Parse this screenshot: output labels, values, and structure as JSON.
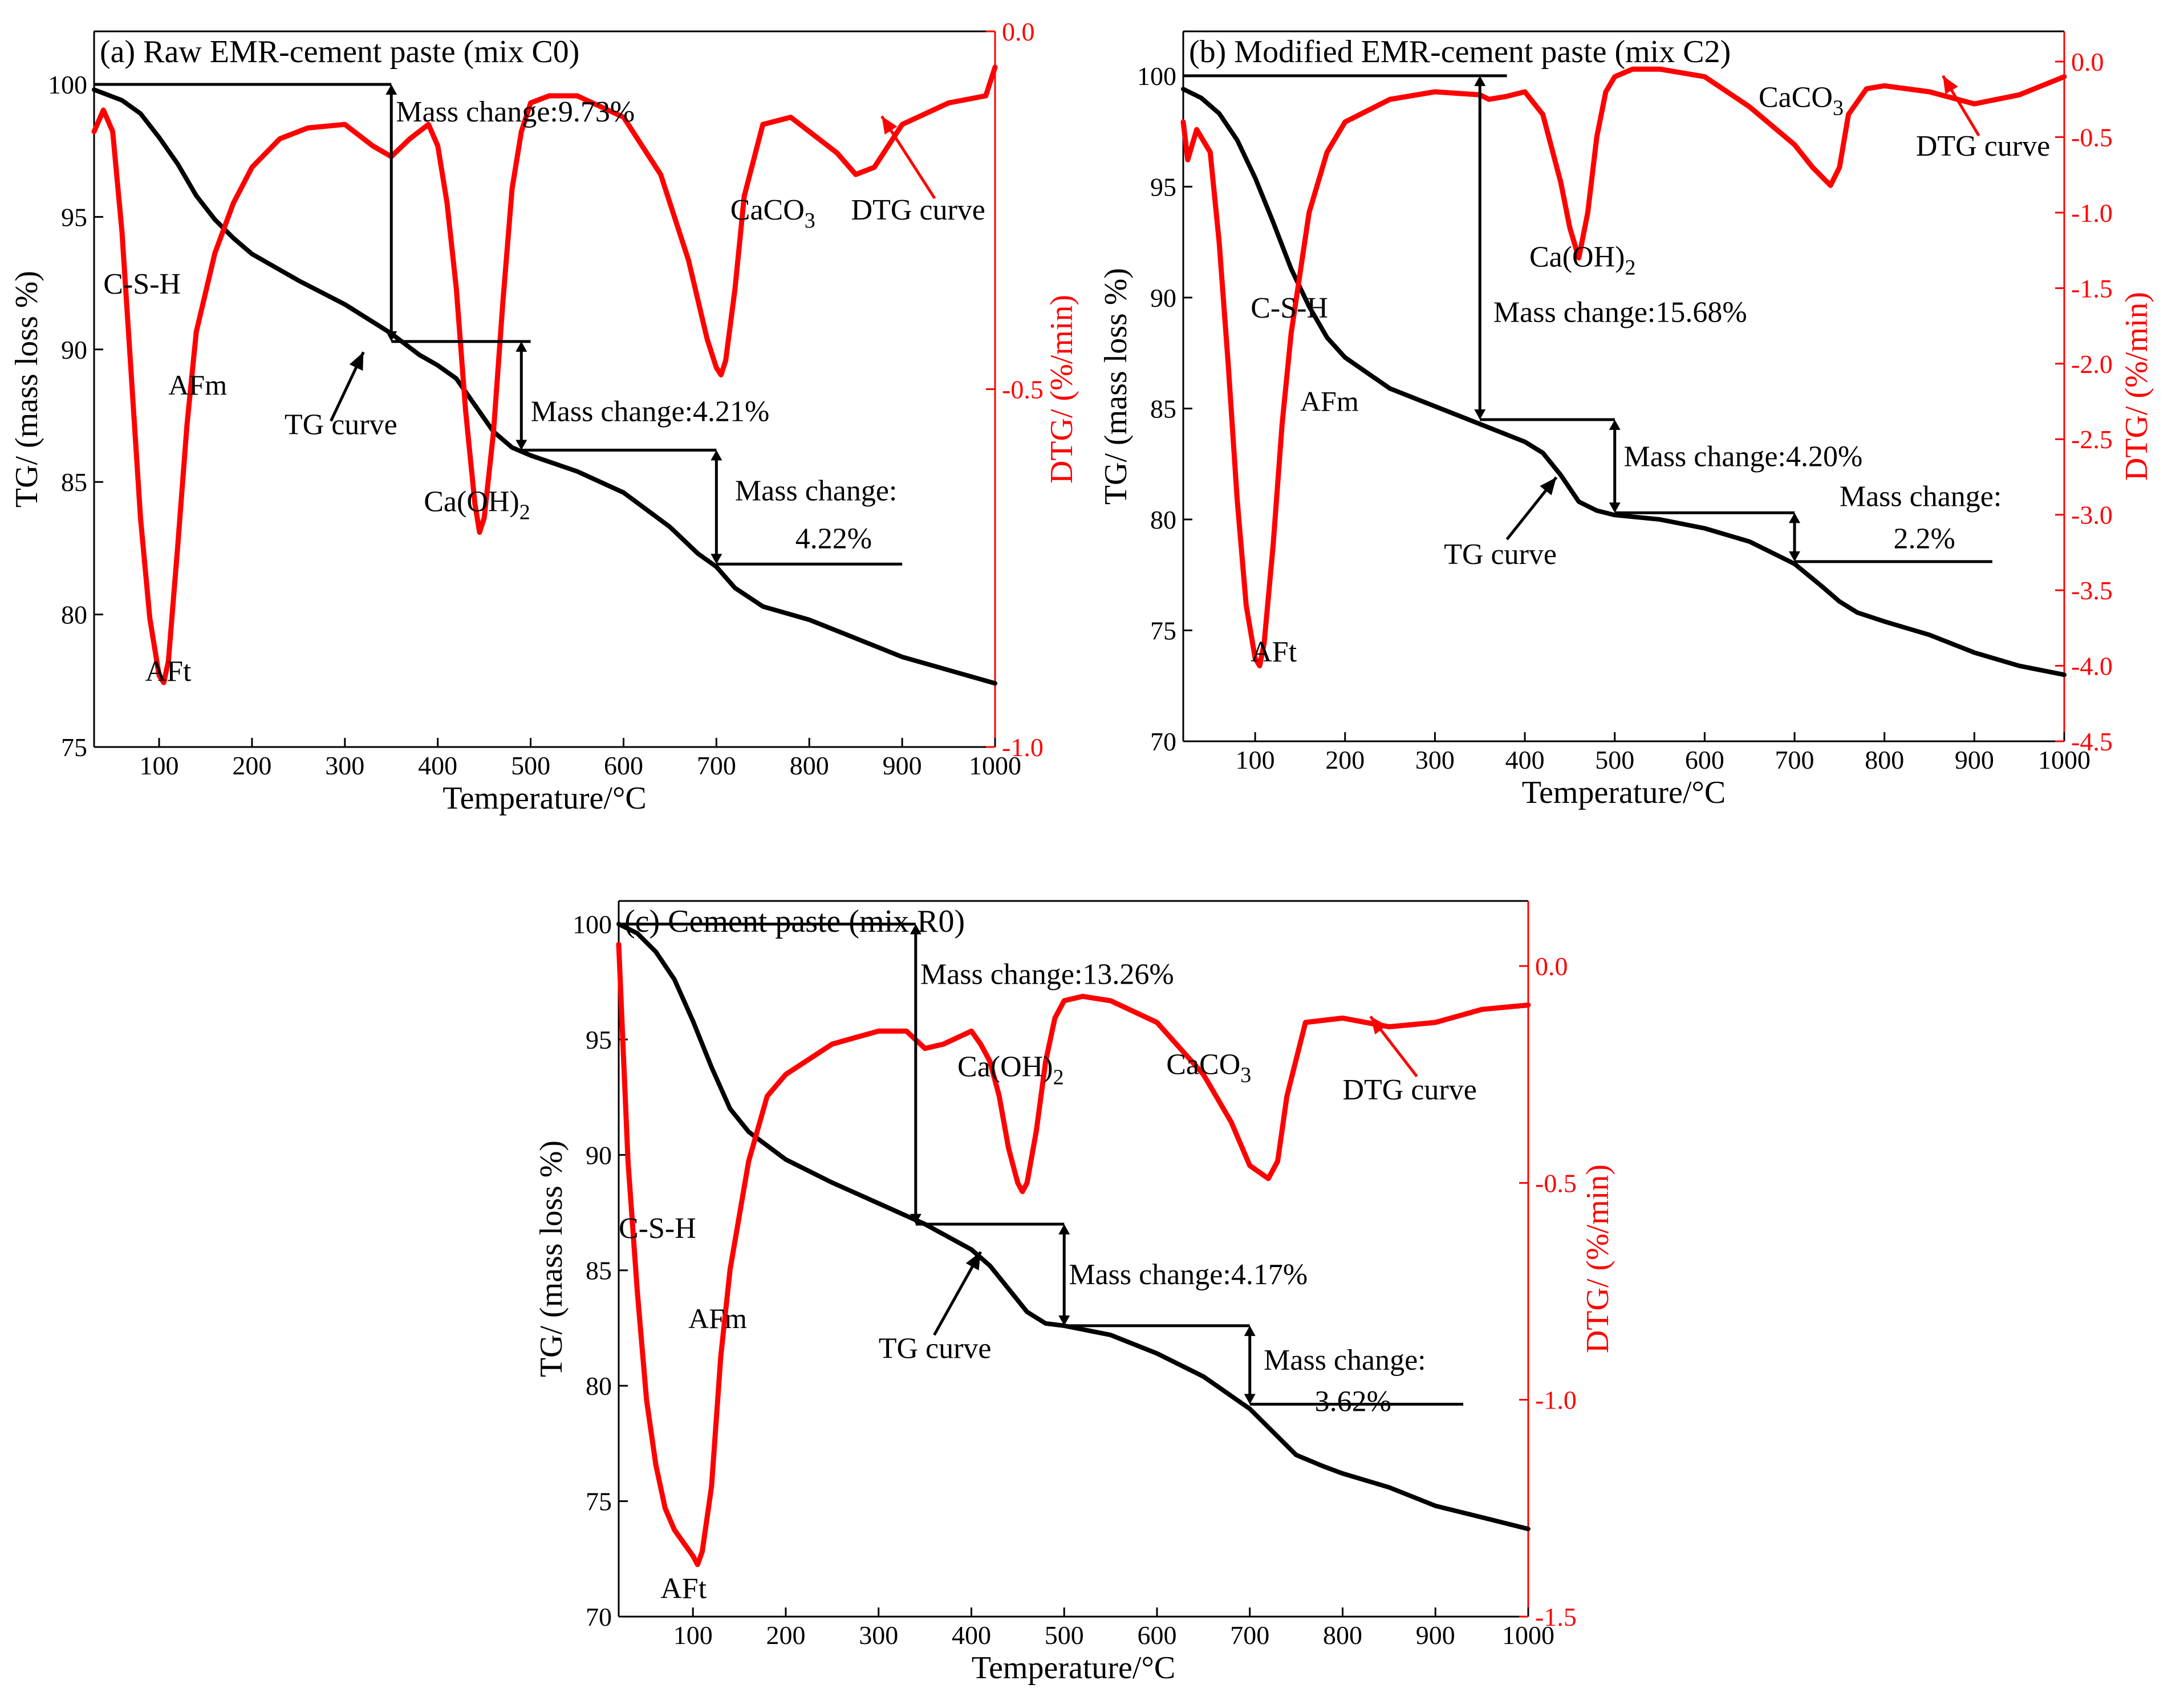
{
  "figure": {
    "colors": {
      "tg": "#000000",
      "dtg": "#ff0000",
      "axis": "#000000",
      "background": "#ffffff"
    },
    "panels": [
      {
        "id": "a",
        "title": "(a) Raw EMR-cement paste (mix C0)",
        "annotations": {
          "csh": "C-S-H",
          "afm": "AFm",
          "aft": "AFt",
          "caoh2": "Ca(OH)",
          "caoh2_sub": "2",
          "caco3": "CaCO",
          "caco3_sub": "3",
          "tg_curve": "TG curve",
          "dtg_curve": "DTG curve",
          "mass1": "Mass change:9.73%",
          "mass2": "Mass change:4.21%",
          "mass3_line1": "Mass change:",
          "mass3_line2": "4.22%"
        }
      },
      {
        "id": "b",
        "title": "(b) Modified EMR-cement paste (mix C2)",
        "annotations": {
          "csh": "C-S-H",
          "afm": "AFm",
          "aft": "AFt",
          "caoh2": "Ca(OH)",
          "caoh2_sub": "2",
          "caco3": "CaCO",
          "caco3_sub": "3",
          "tg_curve": "TG curve",
          "dtg_curve": "DTG curve",
          "mass1": "Mass change:15.68%",
          "mass2": "Mass change:4.20%",
          "mass3_line1": "Mass change:",
          "mass3_line2": "2.2%"
        }
      },
      {
        "id": "c",
        "title": "(c) Cement paste (mix R0)",
        "annotations": {
          "csh": "C-S-H",
          "afm": "AFm",
          "aft": "AFt",
          "caoh2": "Ca(OH)",
          "caoh2_sub": "2",
          "caco3": "CaCO",
          "caco3_sub": "3",
          "tg_curve": "TG curve",
          "dtg_curve": "DTG curve",
          "mass1": "Mass change:13.26%",
          "mass2": "Mass change:4.17%",
          "mass3_line1": "Mass change:",
          "mass3_line2": "3.62%"
        }
      }
    ]
  },
  "chart_data": [
    {
      "type": "line",
      "title": "(a) Raw EMR-cement paste (mix C0)",
      "xlabel": "Temperature/°C",
      "ylabel": "TG/ (mass loss %)",
      "y2label": "DTG/ (%/min)",
      "xlim": [
        30,
        1000
      ],
      "ylim": [
        75,
        102
      ],
      "y2lim": [
        -1.0,
        0.0
      ],
      "xticks": [
        100,
        200,
        300,
        400,
        500,
        600,
        700,
        800,
        900,
        1000
      ],
      "yticks": [
        75,
        80,
        85,
        90,
        95,
        100
      ],
      "y2ticks": [
        -1.0,
        -0.5,
        0.0
      ],
      "ytick_labels": [
        "75",
        "80",
        "85",
        "90",
        "95",
        "100"
      ],
      "y2tick_labels": [
        "-1.0",
        "-0.5",
        "0.0"
      ],
      "series": [
        {
          "name": "TG curve",
          "axis": "left",
          "color": "#000000",
          "x": [
            30,
            60,
            80,
            100,
            120,
            140,
            160,
            180,
            200,
            250,
            300,
            350,
            380,
            400,
            420,
            440,
            460,
            480,
            500,
            550,
            600,
            650,
            680,
            700,
            720,
            750,
            800,
            850,
            900,
            950,
            1000
          ],
          "y": [
            99.8,
            99.4,
            98.9,
            98.0,
            97.0,
            95.8,
            94.9,
            94.2,
            93.6,
            92.6,
            91.7,
            90.6,
            89.8,
            89.4,
            88.9,
            87.9,
            86.9,
            86.3,
            86.0,
            85.4,
            84.6,
            83.3,
            82.3,
            81.8,
            81.0,
            80.3,
            79.8,
            79.1,
            78.4,
            77.9,
            77.4
          ]
        },
        {
          "name": "DTG curve",
          "axis": "right",
          "color": "#ff0000",
          "x": [
            30,
            40,
            50,
            60,
            70,
            80,
            90,
            100,
            105,
            110,
            120,
            130,
            140,
            160,
            180,
            200,
            230,
            260,
            300,
            330,
            350,
            370,
            390,
            400,
            410,
            420,
            430,
            440,
            445,
            450,
            460,
            470,
            480,
            490,
            500,
            520,
            550,
            600,
            640,
            670,
            690,
            700,
            705,
            710,
            720,
            730,
            750,
            780,
            800,
            830,
            850,
            870,
            900,
            950,
            990,
            1000
          ],
          "y": [
            -0.14,
            -0.11,
            -0.14,
            -0.28,
            -0.48,
            -0.68,
            -0.82,
            -0.9,
            -0.91,
            -0.88,
            -0.72,
            -0.55,
            -0.42,
            -0.31,
            -0.24,
            -0.19,
            -0.15,
            -0.135,
            -0.13,
            -0.16,
            -0.175,
            -0.15,
            -0.13,
            -0.16,
            -0.24,
            -0.36,
            -0.53,
            -0.66,
            -0.7,
            -0.68,
            -0.56,
            -0.38,
            -0.22,
            -0.14,
            -0.1,
            -0.09,
            -0.09,
            -0.12,
            -0.2,
            -0.32,
            -0.43,
            -0.47,
            -0.48,
            -0.46,
            -0.36,
            -0.23,
            -0.13,
            -0.12,
            -0.14,
            -0.17,
            -0.2,
            -0.19,
            -0.13,
            -0.1,
            -0.09,
            -0.05
          ]
        }
      ]
    },
    {
      "type": "line",
      "title": "(b) Modified EMR-cement paste (mix C2)",
      "xlabel": "Temperature/°C",
      "ylabel": "TG/ (mass loss %)",
      "y2label": "DTG/ (%/min)",
      "xlim": [
        20,
        1000
      ],
      "ylim": [
        70,
        102
      ],
      "y2lim": [
        -4.5,
        0.2
      ],
      "xticks": [
        100,
        200,
        300,
        400,
        500,
        600,
        700,
        800,
        900,
        1000
      ],
      "yticks": [
        70,
        75,
        80,
        85,
        90,
        95,
        100
      ],
      "y2ticks": [
        -4.5,
        -4.0,
        -3.5,
        -3.0,
        -2.5,
        -2.0,
        -1.5,
        -1.0,
        -0.5,
        0.0
      ],
      "ytick_labels": [
        "70",
        "75",
        "80",
        "85",
        "90",
        "95",
        "100"
      ],
      "y2tick_labels": [
        "-4.5",
        "-4.0",
        "-3.5",
        "-3.0",
        "-2.5",
        "-2.0",
        "-1.5",
        "-1.0",
        "-0.5",
        "0.0"
      ],
      "series": [
        {
          "name": "TG curve",
          "axis": "left",
          "color": "#000000",
          "x": [
            20,
            40,
            60,
            80,
            100,
            120,
            140,
            160,
            180,
            200,
            250,
            300,
            350,
            400,
            420,
            440,
            460,
            480,
            500,
            550,
            600,
            650,
            700,
            730,
            750,
            770,
            800,
            850,
            900,
            950,
            1000
          ],
          "y": [
            99.4,
            99.0,
            98.3,
            97.1,
            95.4,
            93.4,
            91.3,
            89.6,
            88.2,
            87.3,
            85.9,
            85.1,
            84.3,
            83.5,
            83.0,
            82.0,
            80.8,
            80.4,
            80.2,
            80.0,
            79.6,
            79.0,
            78.0,
            77.0,
            76.3,
            75.8,
            75.4,
            74.8,
            74.0,
            73.4,
            73.0
          ]
        },
        {
          "name": "DTG curve",
          "axis": "right",
          "color": "#ff0000",
          "x": [
            20,
            25,
            35,
            50,
            60,
            70,
            80,
            90,
            100,
            105,
            110,
            120,
            130,
            140,
            160,
            180,
            200,
            250,
            300,
            350,
            360,
            380,
            400,
            420,
            440,
            450,
            460,
            470,
            480,
            490,
            500,
            520,
            550,
            600,
            650,
            680,
            700,
            720,
            740,
            750,
            760,
            780,
            800,
            850,
            900,
            950,
            1000
          ],
          "y": [
            -0.4,
            -0.65,
            -0.45,
            -0.6,
            -1.2,
            -2.0,
            -2.9,
            -3.6,
            -3.95,
            -4.0,
            -3.85,
            -3.2,
            -2.4,
            -1.8,
            -1.0,
            -0.6,
            -0.4,
            -0.25,
            -0.2,
            -0.22,
            -0.25,
            -0.23,
            -0.2,
            -0.35,
            -0.8,
            -1.1,
            -1.3,
            -1.0,
            -0.5,
            -0.2,
            -0.1,
            -0.05,
            -0.05,
            -0.1,
            -0.3,
            -0.45,
            -0.55,
            -0.7,
            -0.82,
            -0.7,
            -0.35,
            -0.18,
            -0.16,
            -0.2,
            -0.28,
            -0.22,
            -0.1
          ]
        }
      ]
    },
    {
      "type": "line",
      "title": "(c) Cement paste (mix R0)",
      "xlabel": "Temperature/°C",
      "ylabel": "TG/ (mass loss %)",
      "y2label": "DTG/ (%/min)",
      "xlim": [
        20,
        1000
      ],
      "ylim": [
        70,
        101
      ],
      "y2lim": [
        -1.5,
        0.15
      ],
      "xticks": [
        100,
        200,
        300,
        400,
        500,
        600,
        700,
        800,
        900,
        1000
      ],
      "yticks": [
        70,
        75,
        80,
        85,
        90,
        95,
        100
      ],
      "y2ticks": [
        -1.5,
        -1.0,
        -0.5,
        0.0
      ],
      "ytick_labels": [
        "70",
        "75",
        "80",
        "85",
        "90",
        "95",
        "100"
      ],
      "y2tick_labels": [
        "-1.5",
        "-1.0",
        "-0.5",
        "0.0"
      ],
      "series": [
        {
          "name": "TG curve",
          "axis": "left",
          "color": "#000000",
          "x": [
            20,
            40,
            60,
            80,
            100,
            120,
            140,
            160,
            180,
            200,
            250,
            300,
            350,
            400,
            420,
            440,
            460,
            480,
            500,
            550,
            600,
            650,
            700,
            730,
            750,
            780,
            800,
            850,
            900,
            950,
            1000
          ],
          "y": [
            100.0,
            99.6,
            98.8,
            97.6,
            95.8,
            93.8,
            92.0,
            91.0,
            90.4,
            89.8,
            88.8,
            87.9,
            87.0,
            85.9,
            85.2,
            84.2,
            83.2,
            82.7,
            82.6,
            82.2,
            81.4,
            80.4,
            79.0,
            77.8,
            77.0,
            76.5,
            76.2,
            75.6,
            74.8,
            74.3,
            73.8
          ]
        },
        {
          "name": "DTG curve",
          "axis": "right",
          "color": "#ff0000",
          "x": [
            20,
            25,
            30,
            40,
            50,
            60,
            70,
            80,
            90,
            100,
            105,
            110,
            120,
            130,
            140,
            160,
            180,
            200,
            250,
            300,
            330,
            350,
            370,
            390,
            400,
            410,
            420,
            430,
            440,
            450,
            455,
            460,
            470,
            480,
            490,
            500,
            520,
            550,
            600,
            650,
            680,
            700,
            720,
            730,
            740,
            760,
            800,
            850,
            900,
            950,
            1000
          ],
          "y": [
            0.05,
            -0.2,
            -0.45,
            -0.75,
            -1.0,
            -1.15,
            -1.25,
            -1.3,
            -1.33,
            -1.36,
            -1.38,
            -1.35,
            -1.2,
            -0.9,
            -0.7,
            -0.45,
            -0.3,
            -0.25,
            -0.18,
            -0.15,
            -0.15,
            -0.19,
            -0.18,
            -0.16,
            -0.15,
            -0.18,
            -0.22,
            -0.3,
            -0.42,
            -0.5,
            -0.52,
            -0.5,
            -0.38,
            -0.22,
            -0.12,
            -0.08,
            -0.07,
            -0.08,
            -0.13,
            -0.25,
            -0.36,
            -0.46,
            -0.49,
            -0.45,
            -0.3,
            -0.13,
            -0.12,
            -0.14,
            -0.13,
            -0.1,
            -0.09
          ]
        }
      ]
    }
  ]
}
